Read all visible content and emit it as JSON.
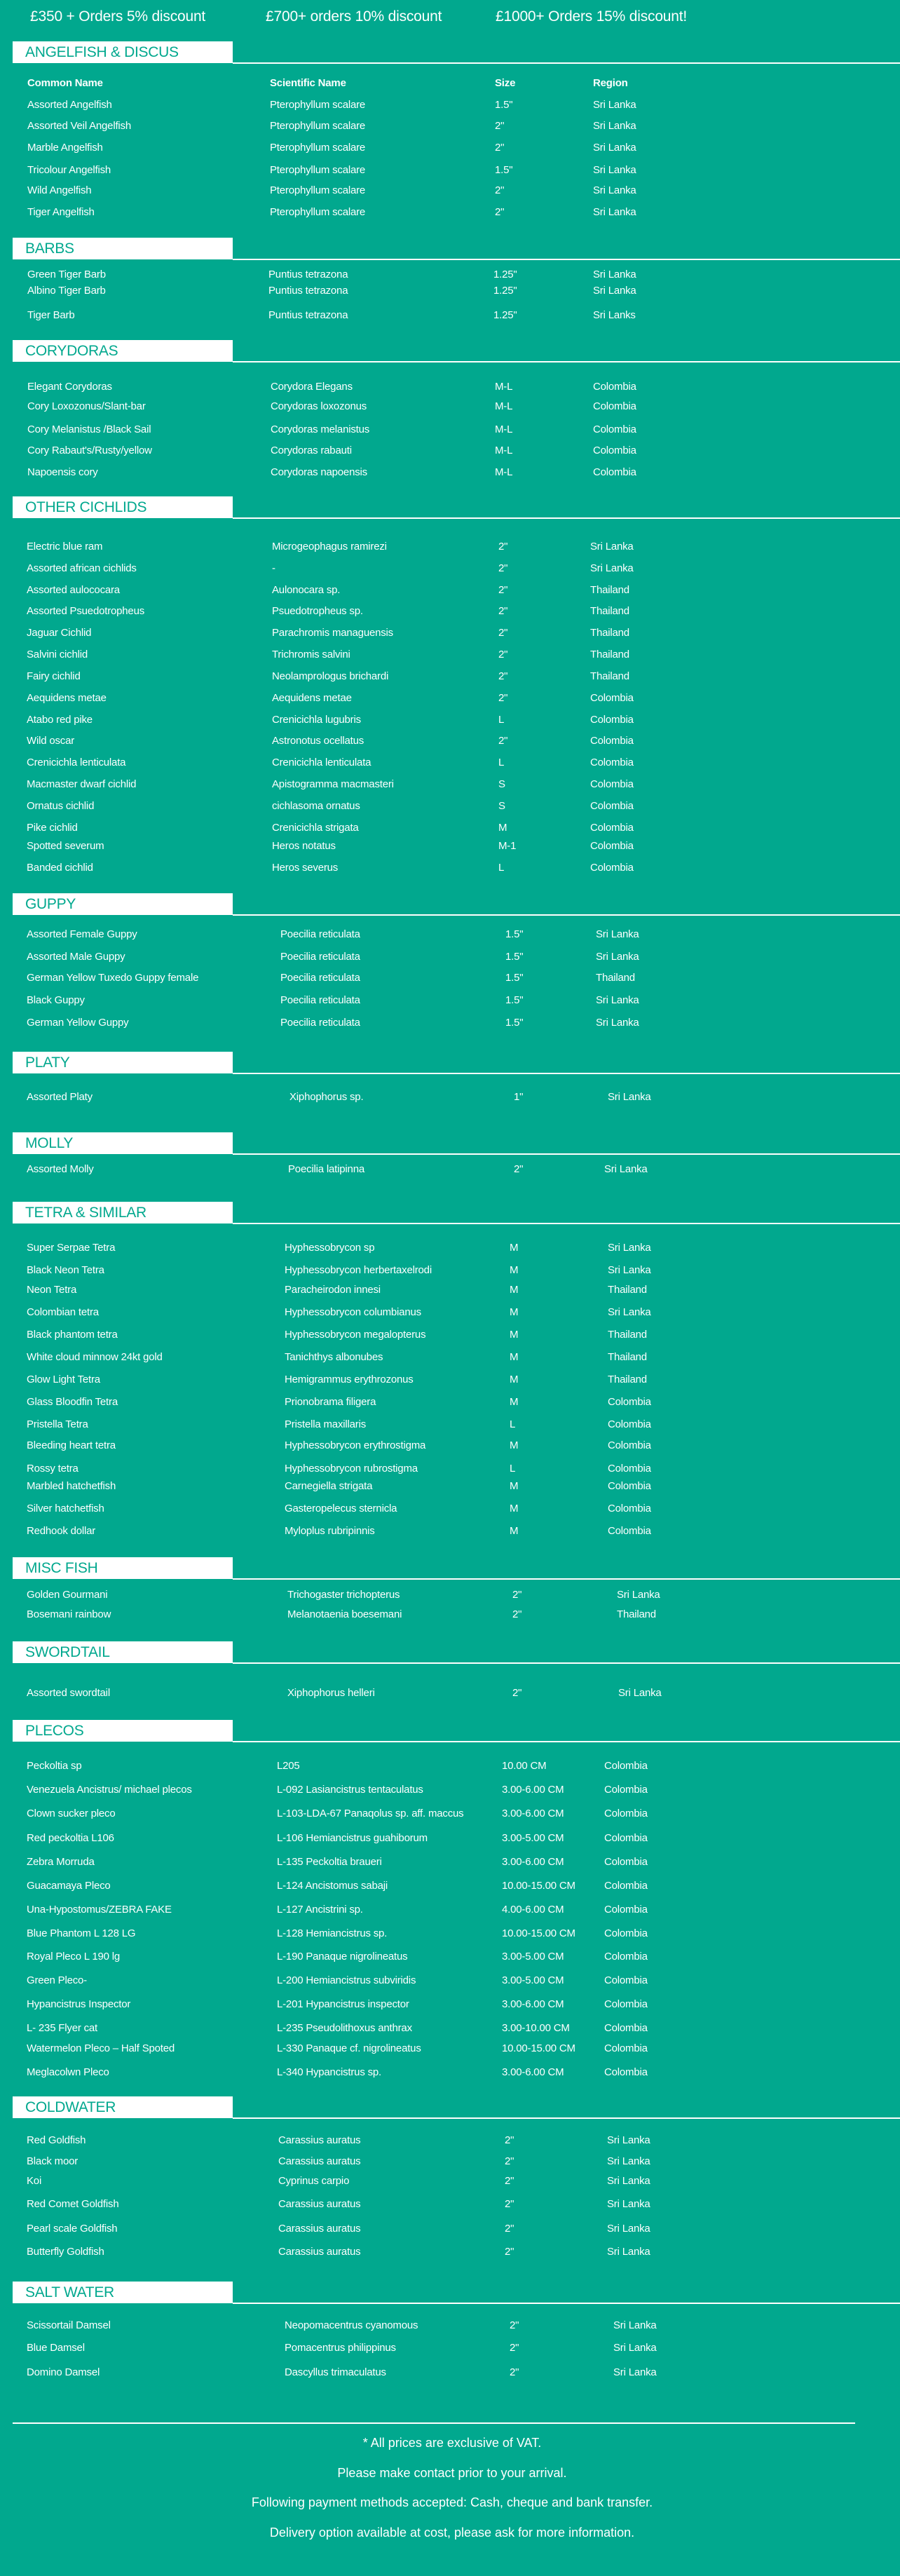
{
  "discounts": [
    "£350 + Orders 5% discount",
    "£700+ orders 10% discount",
    "£1000+ Orders 15% discount!"
  ],
  "colors": {
    "background": "#01a88e",
    "header_box": "#ffffff",
    "header_text": "#01a88e",
    "text": "#ffffff"
  },
  "columns": {
    "common": "Common Name",
    "scientific": "Scientific Name",
    "size": "Size",
    "region": "Region"
  },
  "sections": [
    {
      "title": "ANGELFISH & DISCUS",
      "rows": [
        [
          "Assorted Angelfish",
          "Pterophyllum scalare",
          "1.5\"",
          "Sri Lanka"
        ],
        [
          "Assorted Veil Angelfish",
          "Pterophyllum scalare",
          "2\"",
          "Sri Lanka"
        ],
        [
          "Marble Angelfish",
          "Pterophyllum scalare",
          "2\"",
          "Sri Lanka"
        ],
        [
          "Tricolour Angelfish",
          "Pterophyllum scalare",
          "1.5\"",
          "Sri Lanka"
        ],
        [
          "Wild Angelfish",
          "Pterophyllum scalare",
          "2\"",
          "Sri Lanka"
        ],
        [
          "Tiger Angelfish",
          "Pterophyllum scalare",
          "2\"",
          "Sri Lanka"
        ]
      ]
    },
    {
      "title": "BARBS",
      "rows": [
        [
          "Green Tiger Barb",
          "Puntius tetrazona",
          "1.25\"",
          "Sri Lanka"
        ],
        [
          "Albino Tiger Barb",
          "Puntius tetrazona",
          "1.25\"",
          "Sri Lanka"
        ],
        [
          "Tiger Barb",
          "Puntius tetrazona",
          "1.25\"",
          "Sri Lanks"
        ]
      ]
    },
    {
      "title": "CORYDORAS",
      "rows": [
        [
          "Elegant Corydoras",
          "Corydora Elegans",
          "M-L",
          "Colombia"
        ],
        [
          "Cory Loxozonus/Slant-bar",
          "Corydoras loxozonus",
          "M-L",
          "Colombia"
        ],
        [
          "Cory Melanistus /Black Sail",
          "Corydoras melanistus",
          "M-L",
          "Colombia"
        ],
        [
          "Cory Rabaut's/Rusty/yellow",
          "Corydoras rabauti",
          "M-L",
          "Colombia"
        ],
        [
          "Napoensis cory",
          "Corydoras napoensis",
          "M-L",
          "Colombia"
        ]
      ]
    },
    {
      "title": "OTHER CICHLIDS",
      "rows": [
        [
          "Electric blue ram",
          "Microgeophagus ramirezi",
          "2\"",
          "Sri Lanka"
        ],
        [
          "Assorted african cichlids",
          "-",
          "2\"",
          "Sri Lanka"
        ],
        [
          "Assorted aulococara",
          "Aulonocara sp.",
          "2\"",
          "Thailand"
        ],
        [
          "Assorted Psuedotropheus",
          "Psuedotropheus sp.",
          "2\"",
          "Thailand"
        ],
        [
          "Jaguar Cichlid",
          "Parachromis managuensis",
          "2\"",
          "Thailand"
        ],
        [
          "Salvini cichlid",
          "Trichromis salvini",
          "2\"",
          "Thailand"
        ],
        [
          "Fairy cichlid",
          "Neolamprologus brichardi",
          "2\"",
          "Thailand"
        ],
        [
          "Aequidens metae",
          "Aequidens metae",
          "2\"",
          "Colombia"
        ],
        [
          "Atabo red pike",
          "Crenicichla lugubris",
          "L",
          "Colombia"
        ],
        [
          "Wild oscar",
          "Astronotus ocellatus",
          "2\"",
          "Colombia"
        ],
        [
          "Crenicichla lenticulata",
          "Crenicichla lenticulata",
          "L",
          "Colombia"
        ],
        [
          "Macmaster dwarf cichlid",
          "Apistogramma macmasteri",
          "S",
          "Colombia"
        ],
        [
          "Ornatus cichlid",
          "cichlasoma ornatus",
          "S",
          "Colombia"
        ],
        [
          "Pike cichlid",
          "Crenicichla strigata",
          "M",
          "Colombia"
        ],
        [
          "Spotted severum",
          "Heros notatus",
          "M-1",
          "Colombia"
        ],
        [
          "Banded cichlid",
          "Heros severus",
          "L",
          "Colombia"
        ]
      ]
    },
    {
      "title": "GUPPY",
      "rows": [
        [
          "Assorted Female Guppy",
          "Poecilia reticulata",
          "1.5\"",
          "Sri Lanka"
        ],
        [
          "Assorted Male Guppy",
          "Poecilia reticulata",
          "1.5\"",
          "Sri Lanka"
        ],
        [
          "German Yellow Tuxedo Guppy female",
          "Poecilia reticulata",
          "1.5\"",
          "Thailand"
        ],
        [
          "Black Guppy",
          "Poecilia reticulata",
          "1.5\"",
          "Sri Lanka"
        ],
        [
          "German Yellow Guppy",
          "Poecilia reticulata",
          "1.5\"",
          "Sri Lanka"
        ]
      ]
    },
    {
      "title": "PLATY",
      "rows": [
        [
          "Assorted Platy",
          "Xiphophorus sp.",
          "1\"",
          "Sri Lanka"
        ]
      ]
    },
    {
      "title": "MOLLY",
      "rows": [
        [
          "Assorted Molly",
          "Poecilia latipinna",
          "2\"",
          "Sri Lanka"
        ]
      ]
    },
    {
      "title": "TETRA & SIMILAR",
      "rows": [
        [
          "Super Serpae Tetra",
          "Hyphessobrycon sp",
          "M",
          "Sri Lanka"
        ],
        [
          "Black Neon Tetra",
          "Hyphessobrycon herbertaxelrodi",
          "M",
          "Sri Lanka"
        ],
        [
          "Neon Tetra",
          "Paracheirodon innesi",
          "M",
          "Thailand"
        ],
        [
          "Colombian tetra",
          "Hyphessobrycon columbianus",
          "M",
          "Sri Lanka"
        ],
        [
          "Black phantom tetra",
          "Hyphessobrycon megalopterus",
          "M",
          "Thailand"
        ],
        [
          "White cloud minnow 24kt gold",
          "Tanichthys albonubes",
          "M",
          "Thailand"
        ],
        [
          "Glow Light Tetra",
          "Hemigrammus erythrozonus",
          "M",
          "Thailand"
        ],
        [
          "Glass Bloodfin Tetra",
          "Prionobrama filigera",
          "M",
          "Colombia"
        ],
        [
          "Pristella Tetra",
          "Pristella maxillaris",
          "L",
          "Colombia"
        ],
        [
          "Bleeding heart tetra",
          "Hyphessobrycon erythrostigma",
          "M",
          "Colombia"
        ],
        [
          "Rossy tetra",
          "Hyphessobrycon rubrostigma",
          "L",
          "Colombia"
        ],
        [
          "Marbled hatchetfish",
          "Carnegiella strigata",
          "M",
          "Colombia"
        ],
        [
          "Silver hatchetfish",
          "Gasteropelecus sternicla",
          "M",
          "Colombia"
        ],
        [
          "Redhook dollar",
          "Myloplus rubripinnis",
          "M",
          "Colombia"
        ]
      ]
    },
    {
      "title": "MISC FISH",
      "rows": [
        [
          "Golden Gourmani",
          "Trichogaster trichopterus",
          "2\"",
          "Sri Lanka"
        ],
        [
          "Bosemani rainbow",
          "Melanotaenia boesemani",
          "2\"",
          "Thailand"
        ]
      ]
    },
    {
      "title": "SWORDTAIL",
      "rows": [
        [
          "Assorted swordtail",
          "Xiphophorus helleri",
          "2\"",
          "Sri Lanka"
        ]
      ]
    },
    {
      "title": "PLECOS",
      "rows": [
        [
          "Peckoltia sp",
          "L205",
          "10.00 CM",
          "Colombia"
        ],
        [
          "Venezuela Ancistrus/ michael plecos",
          "L-092 Lasiancistrus tentaculatus",
          "3.00-6.00 CM",
          "Colombia"
        ],
        [
          "Clown sucker pleco",
          "L-103-LDA-67 Panaqolus sp. aff. maccus",
          "3.00-6.00 CM",
          "Colombia"
        ],
        [
          "Red  peckoltia L106",
          "L-106 Hemiancistrus guahiborum",
          "3.00-5.00 CM",
          "Colombia"
        ],
        [
          "Zebra Morruda",
          "L-135 Peckoltia braueri",
          "3.00-6.00 CM",
          "Colombia"
        ],
        [
          "Guacamaya Pleco",
          "L-124 Ancistomus sabaji",
          "10.00-15.00 CM",
          "Colombia"
        ],
        [
          "Una-Hypostomus/ZEBRA FAKE",
          "L-127 Ancistrini sp.",
          "4.00-6.00 CM",
          "Colombia"
        ],
        [
          "Blue Phantom L 128 LG",
          "L-128 Hemiancistrus sp.",
          "10.00-15.00 CM",
          "Colombia"
        ],
        [
          "Royal Pleco L 190 lg",
          "L-190 Panaque nigrolineatus",
          "3.00-5.00 CM",
          "Colombia"
        ],
        [
          "Green Pleco-",
          "L-200 Hemiancistrus subviridis",
          "3.00-5.00 CM",
          "Colombia"
        ],
        [
          "Hypancistrus Inspector",
          "L-201 Hypancistrus inspector",
          "3.00-6.00 CM",
          "Colombia"
        ],
        [
          "L- 235 Flyer cat",
          "L-235 Pseudolithoxus anthrax",
          "3.00-10.00 CM",
          "Colombia"
        ],
        [
          "Watermelon Pleco – Half Spoted",
          "L-330 Panaque cf. nigrolineatus",
          "10.00-15.00 CM",
          "Colombia"
        ],
        [
          "Meglacolwn Pleco",
          "L-340 Hypancistrus sp.",
          "3.00-6.00 CM",
          "Colombia"
        ]
      ]
    },
    {
      "title": "COLDWATER",
      "rows": [
        [
          "Red Goldfish",
          "Carassius auratus",
          "2\"",
          "Sri Lanka"
        ],
        [
          "Black moor",
          "Carassius auratus",
          "2\"",
          "Sri Lanka"
        ],
        [
          "Koi",
          "Cyprinus carpio",
          "2\"",
          "Sri Lanka"
        ],
        [
          "Red Comet Goldfish",
          "Carassius auratus",
          "2\"",
          "Sri Lanka"
        ],
        [
          "Pearl scale Goldfish",
          "Carassius auratus",
          "2\"",
          "Sri Lanka"
        ],
        [
          "Butterfly Goldfish",
          "Carassius auratus",
          "2\"",
          "Sri Lanka"
        ]
      ]
    },
    {
      "title": "SALT WATER",
      "rows": [
        [
          "Scissortail Damsel",
          "Neopomacentrus cyanomous",
          "2\"",
          "Sri Lanka"
        ],
        [
          "Blue Damsel",
          "Pomacentrus philippinus",
          "2\"",
          "Sri Lanka"
        ],
        [
          "Domino Damsel",
          "Dascyllus trimaculatus",
          "2\"",
          "Sri Lanka"
        ]
      ]
    }
  ],
  "footer": [
    "* All prices are exclusive of VAT.",
    "Please make contact prior to your arrival.",
    "Following payment methods accepted: Cash, cheque and bank transfer.",
    "Delivery option available at cost, please ask for more information."
  ]
}
